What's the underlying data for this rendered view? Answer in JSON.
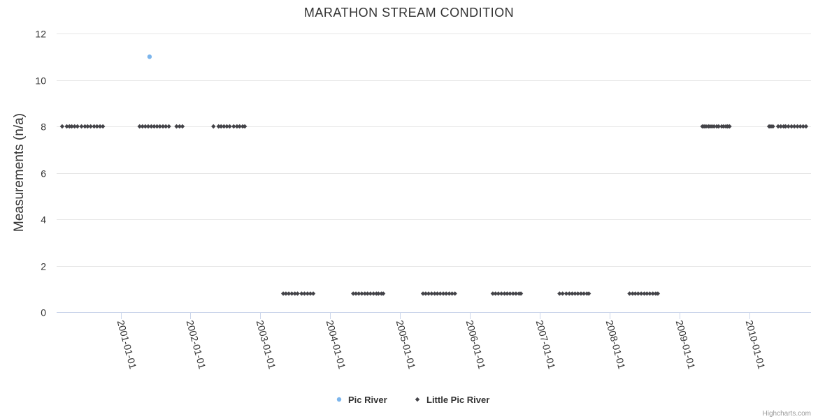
{
  "chart_data": {
    "type": "scatter",
    "title": "MARATHON STREAM CONDITION",
    "ylabel": "Measurements (n/a)",
    "xlabel": "",
    "ylim": [
      0,
      12
    ],
    "yticks": [
      0,
      2,
      4,
      6,
      8,
      10,
      12
    ],
    "xlim": [
      "2000-02-01",
      "2010-11-20"
    ],
    "xtick_labels": [
      "2001-01-01",
      "2002-01-01",
      "2003-01-01",
      "2004-01-01",
      "2005-01-01",
      "2006-01-01",
      "2007-01-01",
      "2008-01-01",
      "2009-01-01",
      "2010-01-01"
    ],
    "grid": true,
    "legend_position": "bottom",
    "series": [
      {
        "name": "Pic River",
        "color": "#7cb5ec",
        "marker": "circle",
        "points": [
          [
            "2001-06-01",
            11
          ]
        ]
      },
      {
        "name": "Little Pic River",
        "color": "#434348",
        "marker": "diamond",
        "points": [
          [
            "2000-03-01",
            8
          ],
          [
            "2000-03-25",
            8
          ],
          [
            "2000-04-08",
            8
          ],
          [
            "2000-04-20",
            8
          ],
          [
            "2000-05-05",
            8
          ],
          [
            "2000-05-20",
            8
          ],
          [
            "2000-06-10",
            8
          ],
          [
            "2000-06-28",
            8
          ],
          [
            "2000-07-12",
            8
          ],
          [
            "2000-07-28",
            8
          ],
          [
            "2000-08-15",
            8
          ],
          [
            "2000-08-30",
            8
          ],
          [
            "2000-09-15",
            8
          ],
          [
            "2000-09-30",
            8
          ],
          [
            "2001-04-10",
            8
          ],
          [
            "2001-04-25",
            8
          ],
          [
            "2001-05-10",
            8
          ],
          [
            "2001-05-25",
            8
          ],
          [
            "2001-06-10",
            8
          ],
          [
            "2001-06-25",
            8
          ],
          [
            "2001-07-10",
            8
          ],
          [
            "2001-07-25",
            8
          ],
          [
            "2001-08-10",
            8
          ],
          [
            "2001-08-25",
            8
          ],
          [
            "2001-09-10",
            8
          ],
          [
            "2001-10-20",
            8
          ],
          [
            "2001-11-05",
            8
          ],
          [
            "2001-11-20",
            8
          ],
          [
            "2002-05-01",
            8
          ],
          [
            "2002-05-28",
            8
          ],
          [
            "2002-06-10",
            8
          ],
          [
            "2002-06-25",
            8
          ],
          [
            "2002-07-10",
            8
          ],
          [
            "2002-07-25",
            8
          ],
          [
            "2002-08-15",
            8
          ],
          [
            "2002-09-01",
            8
          ],
          [
            "2002-09-15",
            8
          ],
          [
            "2002-10-01",
            8
          ],
          [
            "2002-10-12",
            8
          ],
          [
            "2003-05-01",
            0.8
          ],
          [
            "2003-05-15",
            0.8
          ],
          [
            "2003-05-30",
            0.8
          ],
          [
            "2003-06-15",
            0.8
          ],
          [
            "2003-07-01",
            0.8
          ],
          [
            "2003-07-15",
            0.8
          ],
          [
            "2003-08-05",
            0.8
          ],
          [
            "2003-08-20",
            0.8
          ],
          [
            "2003-09-05",
            0.8
          ],
          [
            "2003-09-20",
            0.8
          ],
          [
            "2003-10-05",
            0.8
          ],
          [
            "2004-05-01",
            0.8
          ],
          [
            "2004-05-15",
            0.8
          ],
          [
            "2004-05-30",
            0.8
          ],
          [
            "2004-06-15",
            0.8
          ],
          [
            "2004-07-01",
            0.8
          ],
          [
            "2004-07-15",
            0.8
          ],
          [
            "2004-07-30",
            0.8
          ],
          [
            "2004-08-15",
            0.8
          ],
          [
            "2004-08-30",
            0.8
          ],
          [
            "2004-09-10",
            0.8
          ],
          [
            "2004-09-25",
            0.8
          ],
          [
            "2004-10-05",
            0.8
          ],
          [
            "2005-05-01",
            0.8
          ],
          [
            "2005-05-15",
            0.8
          ],
          [
            "2005-05-30",
            0.8
          ],
          [
            "2005-06-15",
            0.8
          ],
          [
            "2005-07-01",
            0.8
          ],
          [
            "2005-07-15",
            0.8
          ],
          [
            "2005-07-30",
            0.8
          ],
          [
            "2005-08-15",
            0.8
          ],
          [
            "2005-08-30",
            0.8
          ],
          [
            "2005-09-15",
            0.8
          ],
          [
            "2005-09-30",
            0.8
          ],
          [
            "2005-10-15",
            0.8
          ],
          [
            "2006-05-01",
            0.8
          ],
          [
            "2006-05-15",
            0.8
          ],
          [
            "2006-05-30",
            0.8
          ],
          [
            "2006-06-15",
            0.8
          ],
          [
            "2006-07-01",
            0.8
          ],
          [
            "2006-07-15",
            0.8
          ],
          [
            "2006-07-30",
            0.8
          ],
          [
            "2006-08-15",
            0.8
          ],
          [
            "2006-08-30",
            0.8
          ],
          [
            "2006-09-15",
            0.8
          ],
          [
            "2006-09-25",
            0.8
          ],
          [
            "2007-04-15",
            0.8
          ],
          [
            "2007-05-01",
            0.8
          ],
          [
            "2007-05-20",
            0.8
          ],
          [
            "2007-06-05",
            0.8
          ],
          [
            "2007-06-20",
            0.8
          ],
          [
            "2007-07-05",
            0.8
          ],
          [
            "2007-07-20",
            0.8
          ],
          [
            "2007-08-05",
            0.8
          ],
          [
            "2007-08-20",
            0.8
          ],
          [
            "2007-09-05",
            0.8
          ],
          [
            "2007-09-15",
            0.8
          ],
          [
            "2008-04-15",
            0.8
          ],
          [
            "2008-05-01",
            0.8
          ],
          [
            "2008-05-15",
            0.8
          ],
          [
            "2008-05-30",
            0.8
          ],
          [
            "2008-06-15",
            0.8
          ],
          [
            "2008-07-01",
            0.8
          ],
          [
            "2008-07-15",
            0.8
          ],
          [
            "2008-07-30",
            0.8
          ],
          [
            "2008-08-15",
            0.8
          ],
          [
            "2008-08-30",
            0.8
          ],
          [
            "2008-09-10",
            0.8
          ],
          [
            "2009-05-01",
            8
          ],
          [
            "2009-05-10",
            8
          ],
          [
            "2009-05-20",
            8
          ],
          [
            "2009-06-01",
            8
          ],
          [
            "2009-06-10",
            8
          ],
          [
            "2009-06-20",
            8
          ],
          [
            "2009-07-01",
            8
          ],
          [
            "2009-07-15",
            8
          ],
          [
            "2009-07-25",
            8
          ],
          [
            "2009-08-10",
            8
          ],
          [
            "2009-08-20",
            8
          ],
          [
            "2009-09-01",
            8
          ],
          [
            "2009-09-10",
            8
          ],
          [
            "2009-09-20",
            8
          ],
          [
            "2010-04-15",
            8
          ],
          [
            "2010-04-25",
            8
          ],
          [
            "2010-05-05",
            8
          ],
          [
            "2010-06-01",
            8
          ],
          [
            "2010-06-15",
            8
          ],
          [
            "2010-06-30",
            8
          ],
          [
            "2010-07-10",
            8
          ],
          [
            "2010-07-25",
            8
          ],
          [
            "2010-08-10",
            8
          ],
          [
            "2010-08-25",
            8
          ],
          [
            "2010-09-10",
            8
          ],
          [
            "2010-09-25",
            8
          ],
          [
            "2010-10-10",
            8
          ],
          [
            "2010-10-25",
            8
          ]
        ]
      }
    ]
  },
  "credits": "Highcharts.com"
}
